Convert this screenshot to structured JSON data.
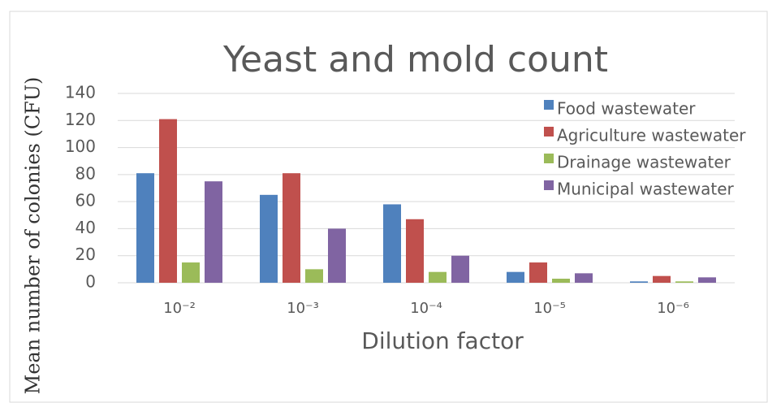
{
  "chart_data": {
    "type": "bar",
    "title": "Yeast and mold count",
    "x_label": "Dilution factor",
    "y_label": "Mean number of colonies (CFU)",
    "categories": [
      "10⁻²",
      "10⁻³",
      "10⁻⁴",
      "10⁻⁵",
      "10⁻⁶"
    ],
    "series": [
      {
        "name": "Food wastewater",
        "color": "#4f81bd",
        "values": [
          81,
          65,
          58,
          8,
          1
        ]
      },
      {
        "name": "Agriculture wastewater",
        "color": "#c0504d",
        "values": [
          121,
          81,
          47,
          15,
          5
        ]
      },
      {
        "name": "Drainage wastewater",
        "color": "#9bbb59",
        "values": [
          15,
          10,
          8,
          3,
          1
        ]
      },
      {
        "name": "Municipal wastewater",
        "color": "#8064a2",
        "values": [
          75,
          40,
          20,
          7,
          4
        ]
      }
    ],
    "ylim": [
      0,
      140
    ],
    "yticks": [
      0,
      20,
      40,
      60,
      80,
      100,
      120,
      140
    ],
    "grid": true,
    "legend": "top-right"
  }
}
